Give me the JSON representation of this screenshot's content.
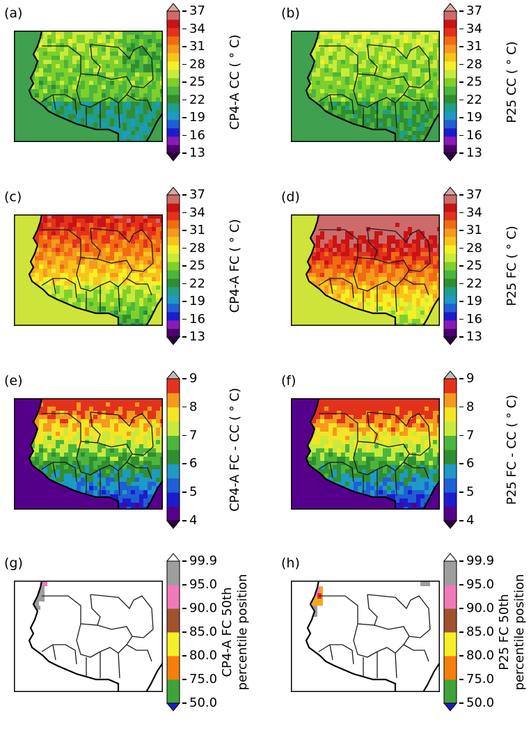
{
  "panels": [
    {
      "id": "a",
      "label": "(a)",
      "row": 0,
      "col": 0,
      "cbar_label": [
        "CP4-A CC ( $^\\circ$ C)"
      ],
      "cbar_label_text": [
        "CP4-A CC ( ° C)"
      ],
      "scale": "temp",
      "field": "cc_cp4"
    },
    {
      "id": "b",
      "label": "(b)",
      "row": 0,
      "col": 1,
      "cbar_label_text": [
        "P25 CC ( ° C)"
      ],
      "scale": "temp",
      "field": "cc_p25"
    },
    {
      "id": "c",
      "label": "(c)",
      "row": 1,
      "col": 0,
      "cbar_label_text": [
        "CP4-A FC ( ° C)"
      ],
      "scale": "temp",
      "field": "fc_cp4"
    },
    {
      "id": "d",
      "label": "(d)",
      "row": 1,
      "col": 1,
      "cbar_label_text": [
        "P25 FC ( ° C)"
      ],
      "scale": "temp",
      "field": "fc_p25"
    },
    {
      "id": "e",
      "label": "(e)",
      "row": 2,
      "col": 0,
      "cbar_label_text": [
        "CP4-A FC - CC ( ° C)"
      ],
      "scale": "diff",
      "field": "diff_cp4"
    },
    {
      "id": "f",
      "label": "(f)",
      "row": 2,
      "col": 1,
      "cbar_label_text": [
        "P25 FC - CC ( ° C)"
      ],
      "scale": "diff",
      "field": "diff_p25"
    },
    {
      "id": "g",
      "label": "(g)",
      "row": 3,
      "col": 0,
      "cbar_label_text": [
        "CP4-A FC 50th",
        "percentile position"
      ],
      "scale": "pct",
      "field": "pct_cp4"
    },
    {
      "id": "h",
      "label": "(h)",
      "row": 3,
      "col": 1,
      "cbar_label_text": [
        "P25 FC 50th",
        "percentile position"
      ],
      "scale": "pct",
      "field": "pct_p25"
    }
  ],
  "scales": {
    "temp": {
      "ticks": [
        "13",
        "16",
        "19",
        "22",
        "25",
        "28",
        "31",
        "34",
        "37"
      ],
      "colors": [
        "#4b006e",
        "#8a1ab5",
        "#1c1ccc",
        "#1f5fd6",
        "#1e9ac4",
        "#1f9e8a",
        "#2f8f2f",
        "#4cb53c",
        "#7fd02a",
        "#c8ea3c",
        "#f4f028",
        "#f9c419",
        "#f59a1e",
        "#f06c12",
        "#e3321c",
        "#c81414",
        "#cd6b6b"
      ],
      "extend_low": "#2b0040",
      "extend_high": "#d9a6a6"
    },
    "diff": {
      "ticks": [
        "4",
        "5",
        "6",
        "7",
        "8",
        "9"
      ],
      "colors": [
        "#55008a",
        "#1c1ccc",
        "#1f5fd6",
        "#1e9ac4",
        "#2f8f2f",
        "#4cb53c",
        "#c8ea3c",
        "#f4e526",
        "#f59a1e",
        "#e3321c"
      ],
      "extend_low": "#2b0040",
      "extend_high": "#bdbdbd"
    },
    "pct": {
      "ticks": [
        "50.0",
        "75.0",
        "80.0",
        "85.0",
        "90.0",
        "95.0",
        "99.9"
      ],
      "colors": [
        "#3ea43a",
        "#f57f0e",
        "#f4f028",
        "#a0522d",
        "#f07ab8",
        "#9e9e9e"
      ],
      "extend_low": "#1c1ccc",
      "extend_high": "#ffffff"
    }
  },
  "legend_colors": {
    "coast": "#000000",
    "border": "#1a1a1a",
    "ocean_cc": "#3fa050",
    "ocean_fc": "#cfe43a",
    "ocean_diff": "#55008a",
    "pct_land": "#ffffff"
  }
}
